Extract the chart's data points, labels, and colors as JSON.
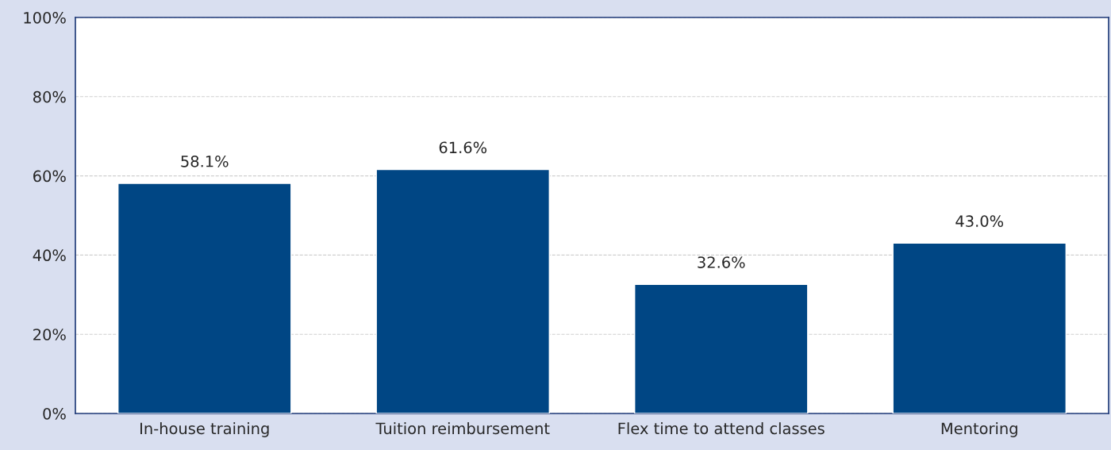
{
  "chart_data": {
    "type": "bar",
    "categories": [
      "In-house training",
      "Tuition reimbursement",
      "Flex time to attend classes",
      "Mentoring"
    ],
    "values": [
      58.1,
      61.6,
      32.6,
      43.0
    ],
    "value_labels": [
      "58.1%",
      "61.6%",
      "32.6%",
      "43.0%"
    ],
    "color": "#004684",
    "ylim": [
      0,
      100
    ],
    "yticks": [
      {
        "value": 0,
        "label": "0%"
      },
      {
        "value": 20,
        "label": "20%"
      },
      {
        "value": 40,
        "label": "40%"
      },
      {
        "value": 60,
        "label": "60%"
      },
      {
        "value": 80,
        "label": "80%"
      },
      {
        "value": 100,
        "label": "100%"
      }
    ],
    "grid": "y",
    "legend": false
  }
}
